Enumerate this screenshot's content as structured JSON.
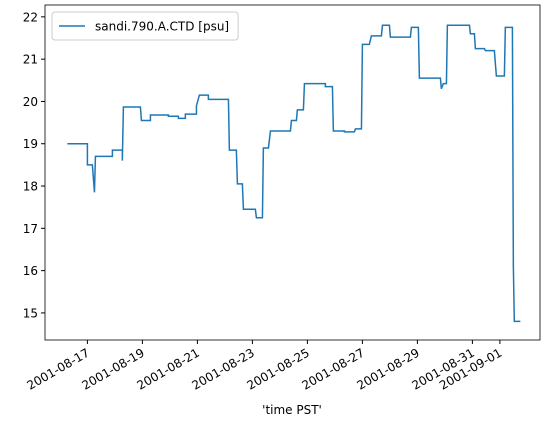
{
  "chart_data": {
    "type": "line",
    "xlabel": "'time PST'",
    "x": [
      "2001-08-16T06:30",
      "2001-08-17T00:00",
      "2001-08-17T00:00",
      "2001-08-17T04:20",
      "2001-08-17T06:10",
      "2001-08-17T07:00",
      "2001-08-17T21:50",
      "2001-08-17T21:50",
      "2001-08-18T06:30",
      "2001-08-18T06:30",
      "2001-08-18T07:25",
      "2001-08-18T22:15",
      "2001-08-18T23:10",
      "2001-08-19T07:00",
      "2001-08-19T07:00",
      "2001-08-19T22:40",
      "2001-08-19T22:40",
      "2001-08-20T07:25",
      "2001-08-20T07:25",
      "2001-08-20T13:30",
      "2001-08-20T13:30",
      "2001-08-20T23:10",
      "2001-08-20T23:10",
      "2001-08-21T01:45",
      "2001-08-21T09:35",
      "2001-08-21T09:35",
      "2001-08-22T03:05",
      "2001-08-22T03:55",
      "2001-08-22T10:00",
      "2001-08-22T10:55",
      "2001-08-22T15:15",
      "2001-08-22T16:10",
      "2001-08-23T02:35",
      "2001-08-23T03:30",
      "2001-08-23T08:45",
      "2001-08-23T09:35",
      "2001-08-23T14:00",
      "2001-08-23T15:45",
      "2001-08-24T09:10",
      "2001-08-24T10:05",
      "2001-08-24T14:25",
      "2001-08-24T15:15",
      "2001-08-24T20:30",
      "2001-08-24T21:25",
      "2001-08-25T15:40",
      "2001-08-25T15:40",
      "2001-08-25T21:50",
      "2001-08-25T22:40",
      "2001-08-26T08:20",
      "2001-08-26T08:20",
      "2001-08-26T17:00",
      "2001-08-26T17:55",
      "2001-08-26T23:10",
      "2001-08-27T00:00",
      "2001-08-27T06:05",
      "2001-08-27T07:50",
      "2001-08-27T16:35",
      "2001-08-27T17:30",
      "2001-08-27T23:35",
      "2001-08-28T00:25",
      "2001-08-28T17:55",
      "2001-08-28T18:45",
      "2001-08-29T00:50",
      "2001-08-29T01:45",
      "2001-08-29T20:05",
      "2001-08-29T20:55",
      "2001-08-29T22:40",
      "2001-08-30T01:20",
      "2001-08-30T02:10",
      "2001-08-30T21:25",
      "2001-08-30T22:15",
      "2001-08-31T01:45",
      "2001-08-31T02:35",
      "2001-08-31T10:30",
      "2001-08-31T11:20",
      "2001-08-31T19:10",
      "2001-08-31T20:55",
      "2001-09-01T03:55",
      "2001-09-01T04:45",
      "2001-09-01T10:55",
      "2001-09-01T11:45",
      "2001-09-01T12:35",
      "2001-09-01T17:50"
    ],
    "series": [
      {
        "name": "sandi.790.A.CTD [psu]",
        "color": "#1f77b4",
        "values": [
          19.0,
          19.0,
          18.5,
          18.5,
          17.85,
          18.7,
          18.7,
          18.85,
          18.85,
          18.6,
          19.87,
          19.87,
          19.55,
          19.55,
          19.68,
          19.68,
          19.65,
          19.65,
          19.6,
          19.6,
          19.7,
          19.7,
          19.9,
          20.15,
          20.15,
          20.05,
          20.05,
          18.85,
          18.85,
          18.05,
          18.05,
          17.45,
          17.45,
          17.25,
          17.25,
          18.9,
          18.9,
          19.3,
          19.3,
          19.55,
          19.55,
          19.8,
          19.8,
          20.42,
          20.42,
          20.35,
          20.35,
          19.3,
          19.3,
          19.28,
          19.28,
          19.35,
          19.35,
          21.35,
          21.35,
          21.55,
          21.55,
          21.8,
          21.8,
          21.52,
          21.52,
          21.75,
          21.75,
          20.55,
          20.55,
          20.3,
          20.42,
          20.42,
          21.8,
          21.8,
          21.6,
          21.6,
          21.25,
          21.25,
          21.2,
          21.2,
          20.6,
          20.6,
          21.75,
          21.75,
          16.1,
          14.8,
          14.8
        ]
      }
    ],
    "xlim": [
      "2001-08-15T11:00",
      "2001-09-02T11:00"
    ],
    "xticks": [
      "2001-08-17",
      "2001-08-19",
      "2001-08-21",
      "2001-08-23",
      "2001-08-25",
      "2001-08-27",
      "2001-08-29",
      "2001-08-31",
      "2001-09-01"
    ],
    "ylim": [
      14.36,
      22.28
    ],
    "yticks": [
      15,
      16,
      17,
      18,
      19,
      20,
      21,
      22
    ],
    "legend": "upper left",
    "grid": false
  }
}
